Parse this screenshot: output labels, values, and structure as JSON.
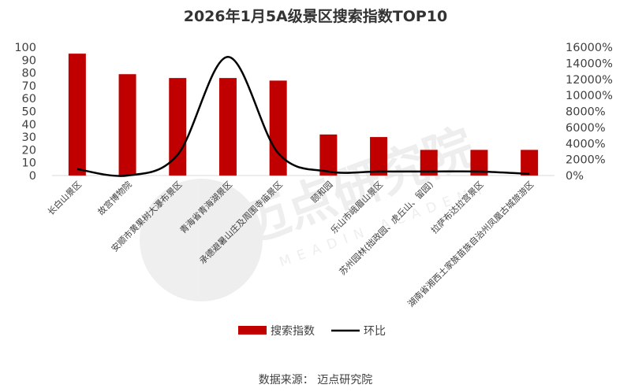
{
  "chart_data": {
    "type": "bar",
    "title": "2026年1月5A级景区搜索指数TOP10",
    "categories": [
      "长白山景区",
      "故宫博物院",
      "安顺市黄果树大瀑布景区",
      "青海省青海湖景区",
      "承德避暑山庄及周围寺庙景区",
      "颐和园",
      "乐山市峨眉山景区",
      "苏州园林(拙政园、虎丘山、留园)",
      "拉萨布达拉宫景区",
      "湖南省湘西土家族苗族自治州凤凰古城旅游区"
    ],
    "series": [
      {
        "name": "搜索指数",
        "type": "bar",
        "axis": "left",
        "color": "#c00000",
        "values": [
          95,
          79,
          76,
          76,
          74,
          32,
          30,
          20,
          20,
          20
        ]
      },
      {
        "name": "环比",
        "type": "line",
        "axis": "right",
        "color": "#000000",
        "smooth": true,
        "values": [
          800,
          0,
          2600,
          14800,
          2800,
          500,
          500,
          500,
          500,
          200
        ]
      }
    ],
    "y_left": {
      "min": 0,
      "max": 100,
      "step": 10,
      "ticks": [
        "0",
        "10",
        "20",
        "30",
        "40",
        "50",
        "60",
        "70",
        "80",
        "90",
        "100"
      ]
    },
    "y_right": {
      "min": 0,
      "max": 16000,
      "step": 2000,
      "unit": "%",
      "ticks": [
        "0%",
        "2000%",
        "4000%",
        "6000%",
        "8000%",
        "10000%",
        "12000%",
        "14000%",
        "16000%"
      ]
    },
    "grid": false,
    "legend_position": "bottom"
  },
  "watermark": {
    "text": "迈点研究院",
    "subtext": "MEADIN ACADEMY"
  },
  "source": "数据来源： 迈点研究院"
}
